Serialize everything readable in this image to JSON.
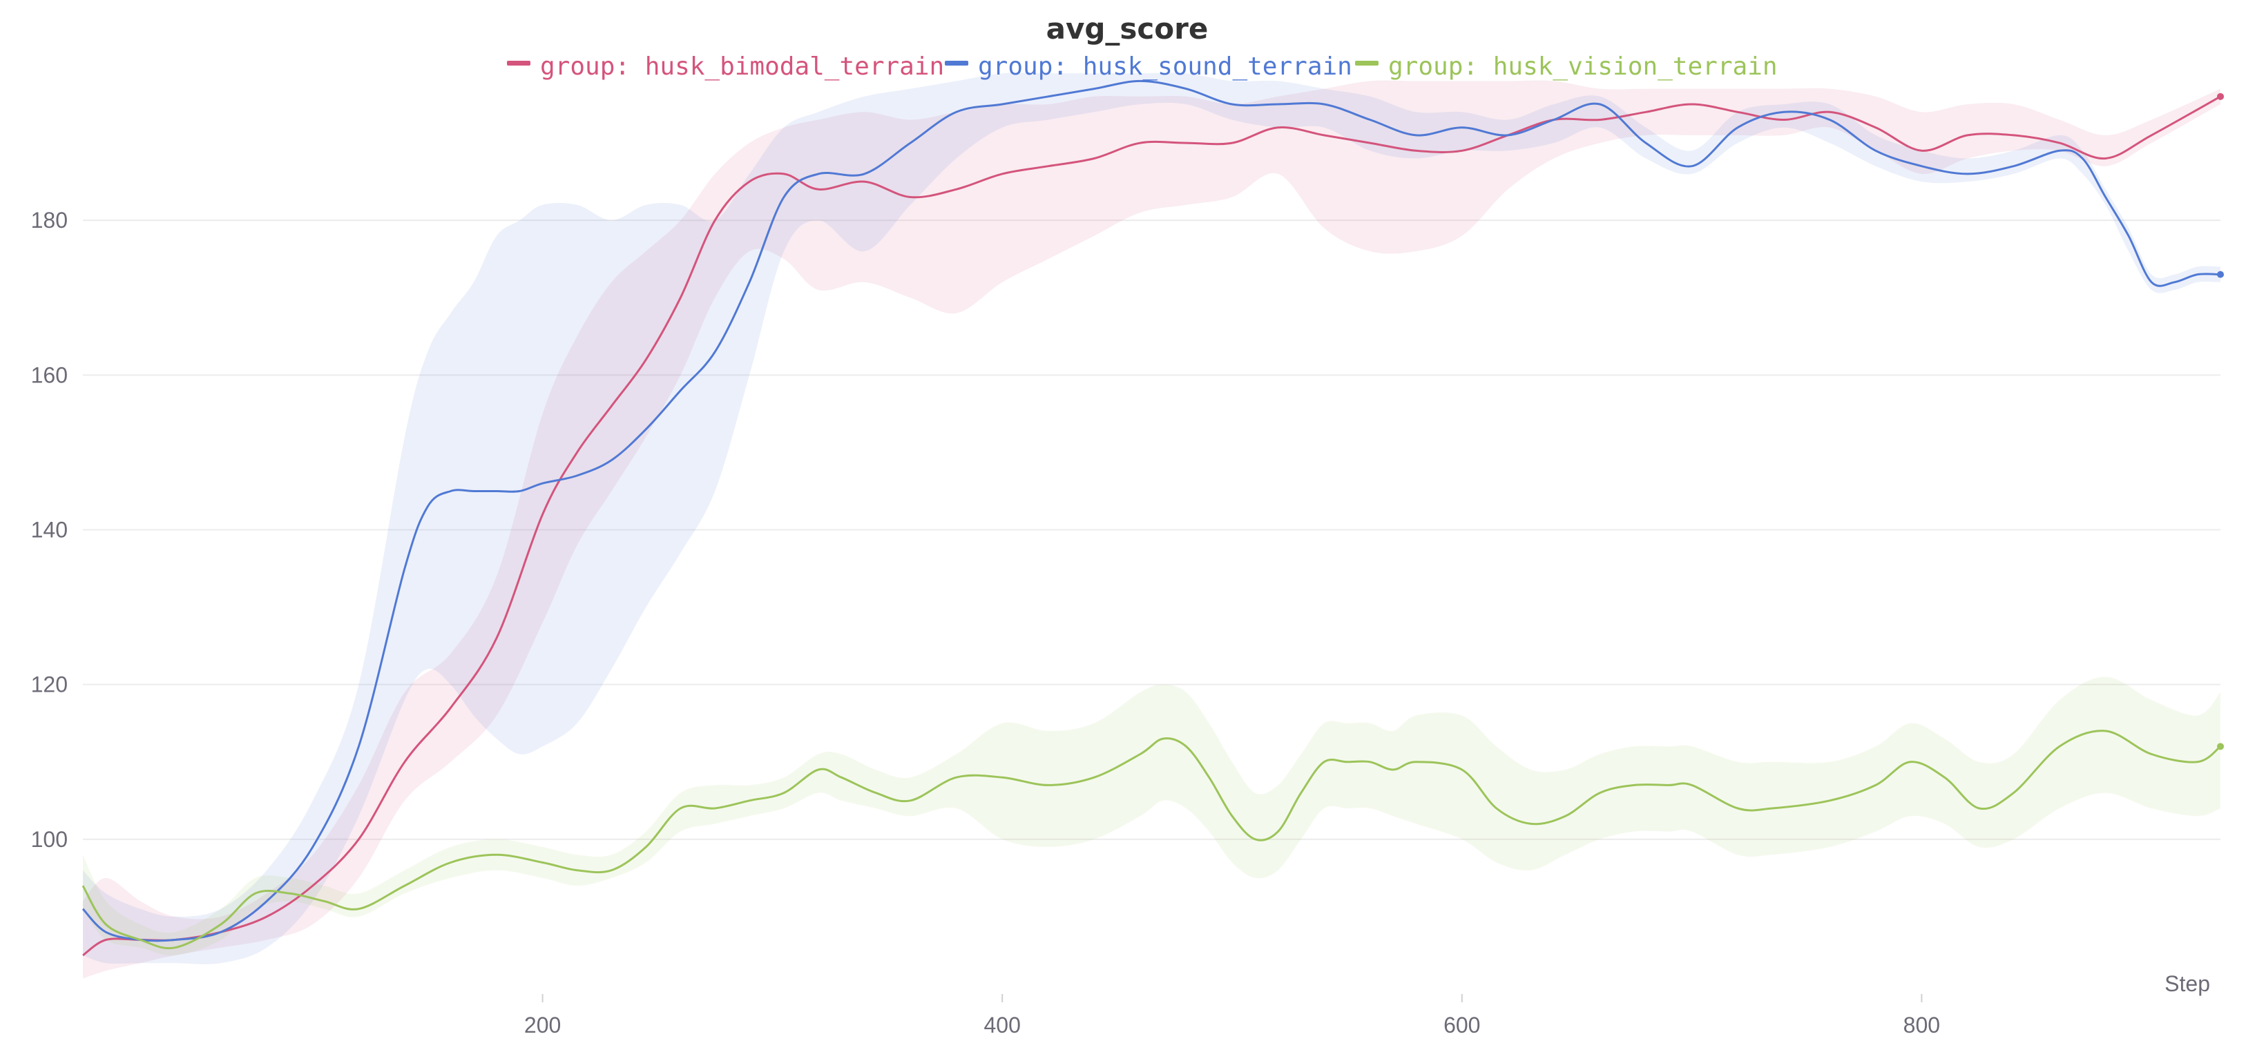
{
  "chart_data": {
    "type": "line",
    "title": "avg_score",
    "xlabel": "Step",
    "ylabel": "",
    "xlim": [
      0,
      930
    ],
    "ylim": [
      80,
      200
    ],
    "xticks": [
      200,
      400,
      600,
      800
    ],
    "yticks": [
      100,
      120,
      140,
      160,
      180
    ],
    "grid": true,
    "legend_position": "top",
    "shaded_range": true,
    "series": [
      {
        "name": "group: husk_bimodal_terrain",
        "color": "#d4547c",
        "x": [
          0,
          10,
          25,
          40,
          60,
          80,
          100,
          120,
          140,
          160,
          180,
          200,
          215,
          230,
          245,
          260,
          275,
          290,
          305,
          320,
          340,
          360,
          380,
          400,
          420,
          440,
          460,
          480,
          500,
          520,
          540,
          560,
          580,
          600,
          620,
          640,
          660,
          680,
          700,
          720,
          740,
          760,
          780,
          800,
          820,
          840,
          860,
          880,
          900,
          930
        ],
        "values": [
          85,
          87,
          87,
          87,
          88,
          90,
          94,
          100,
          110,
          117,
          126,
          142,
          150,
          156,
          162,
          170,
          180,
          185,
          186,
          184,
          185,
          183,
          184,
          186,
          187,
          188,
          190,
          190,
          190,
          192,
          191,
          190,
          189,
          189,
          191,
          193,
          193,
          194,
          195,
          194,
          193,
          194,
          192,
          189,
          191,
          191,
          190,
          188,
          191,
          196
        ],
        "lower": [
          82,
          83,
          84,
          85,
          86,
          87,
          89,
          95,
          105,
          110,
          116,
          128,
          138,
          145,
          152,
          160,
          170,
          176,
          175,
          171,
          172,
          170,
          168,
          172,
          175,
          178,
          181,
          182,
          183,
          186,
          179,
          176,
          176,
          178,
          184,
          188,
          190,
          191,
          191,
          191,
          191,
          192,
          189,
          186,
          188,
          189,
          189,
          187,
          190,
          195
        ],
        "upper": [
          92,
          95,
          92,
          90,
          90,
          93,
          98,
          107,
          119,
          124,
          134,
          155,
          165,
          172,
          176,
          180,
          186,
          190,
          192,
          193,
          194,
          193,
          194,
          195,
          195,
          196,
          196,
          196,
          195,
          196,
          197,
          198,
          198,
          198,
          198,
          198,
          197,
          197,
          197,
          197,
          197,
          197,
          196,
          194,
          195,
          195,
          193,
          191,
          193,
          197
        ]
      },
      {
        "name": "group: husk_sound_terrain",
        "color": "#5079d4",
        "x": [
          0,
          10,
          25,
          40,
          60,
          80,
          100,
          120,
          140,
          150,
          160,
          170,
          180,
          190,
          200,
          215,
          230,
          245,
          260,
          275,
          290,
          305,
          320,
          340,
          360,
          380,
          400,
          420,
          440,
          460,
          480,
          500,
          520,
          540,
          560,
          580,
          600,
          620,
          640,
          660,
          680,
          700,
          720,
          740,
          760,
          780,
          800,
          820,
          840,
          860,
          870,
          880,
          890,
          900,
          910,
          920,
          930
        ],
        "values": [
          91,
          88,
          87,
          87,
          88,
          92,
          99,
          112,
          135,
          143,
          145,
          145,
          145,
          145,
          146,
          147,
          149,
          153,
          158,
          163,
          172,
          183,
          186,
          186,
          190,
          194,
          195,
          196,
          197,
          198,
          197,
          195,
          195,
          195,
          193,
          191,
          192,
          191,
          193,
          195,
          190,
          187,
          192,
          194,
          193,
          189,
          187,
          186,
          187,
          189,
          188,
          183,
          178,
          172,
          172,
          173,
          173
        ],
        "lower": [
          85,
          84,
          84,
          84,
          84,
          86,
          92,
          103,
          118,
          122,
          120,
          116,
          113,
          111,
          112,
          115,
          122,
          130,
          137,
          145,
          160,
          176,
          180,
          176,
          182,
          188,
          192,
          193,
          194,
          195,
          195,
          193,
          192,
          192,
          189,
          188,
          189,
          189,
          190,
          192,
          188,
          186,
          190,
          192,
          190,
          187,
          185,
          185,
          186,
          188,
          186,
          182,
          176,
          171,
          171,
          172,
          172
        ],
        "upper": [
          96,
          93,
          91,
          90,
          91,
          96,
          105,
          120,
          152,
          163,
          168,
          172,
          178,
          180,
          182,
          182,
          180,
          182,
          182,
          180,
          186,
          192,
          194,
          196,
          197,
          198,
          199,
          199,
          199,
          199,
          199,
          198,
          198,
          197,
          196,
          194,
          194,
          193,
          195,
          196,
          192,
          189,
          194,
          195,
          195,
          191,
          189,
          188,
          189,
          191,
          189,
          184,
          179,
          173,
          173,
          174,
          174
        ]
      },
      {
        "name": "group: husk_vision_terrain",
        "color": "#9cc45a",
        "x": [
          0,
          10,
          25,
          40,
          60,
          75,
          90,
          105,
          120,
          140,
          160,
          180,
          200,
          215,
          230,
          245,
          260,
          275,
          290,
          305,
          320,
          330,
          345,
          360,
          380,
          400,
          420,
          440,
          460,
          470,
          480,
          490,
          500,
          510,
          520,
          530,
          540,
          550,
          560,
          570,
          580,
          600,
          615,
          630,
          645,
          660,
          675,
          690,
          700,
          720,
          735,
          760,
          780,
          795,
          810,
          825,
          840,
          860,
          880,
          900,
          920,
          930
        ],
        "values": [
          94,
          89,
          87,
          86,
          89,
          93,
          93,
          92,
          91,
          94,
          97,
          98,
          97,
          96,
          96,
          99,
          104,
          104,
          105,
          106,
          109,
          108,
          106,
          105,
          108,
          108,
          107,
          108,
          111,
          113,
          112,
          108,
          103,
          100,
          101,
          106,
          110,
          110,
          110,
          109,
          110,
          109,
          104,
          102,
          103,
          106,
          107,
          107,
          107,
          104,
          104,
          105,
          107,
          110,
          108,
          104,
          106,
          112,
          114,
          111,
          110,
          112
        ],
        "lower": [
          91,
          87,
          86,
          85,
          87,
          91,
          92,
          91,
          90,
          93,
          95,
          96,
          95,
          94,
          95,
          97,
          101,
          102,
          103,
          104,
          106,
          105,
          104,
          103,
          104,
          100,
          99,
          100,
          103,
          105,
          104,
          101,
          97,
          95,
          96,
          100,
          104,
          104,
          104,
          103,
          102,
          100,
          97,
          96,
          98,
          100,
          101,
          101,
          101,
          98,
          98,
          99,
          101,
          103,
          102,
          99,
          100,
          104,
          106,
          104,
          103,
          104
        ],
        "upper": [
          98,
          92,
          89,
          88,
          91,
          95,
          95,
          94,
          93,
          96,
          99,
          100,
          99,
          98,
          98,
          101,
          106,
          107,
          107,
          108,
          111,
          111,
          109,
          108,
          111,
          115,
          114,
          115,
          119,
          120,
          119,
          115,
          110,
          106,
          107,
          111,
          115,
          115,
          115,
          114,
          116,
          116,
          112,
          109,
          109,
          111,
          112,
          112,
          112,
          110,
          110,
          110,
          112,
          115,
          113,
          110,
          111,
          118,
          121,
          118,
          116,
          119
        ]
      }
    ]
  }
}
